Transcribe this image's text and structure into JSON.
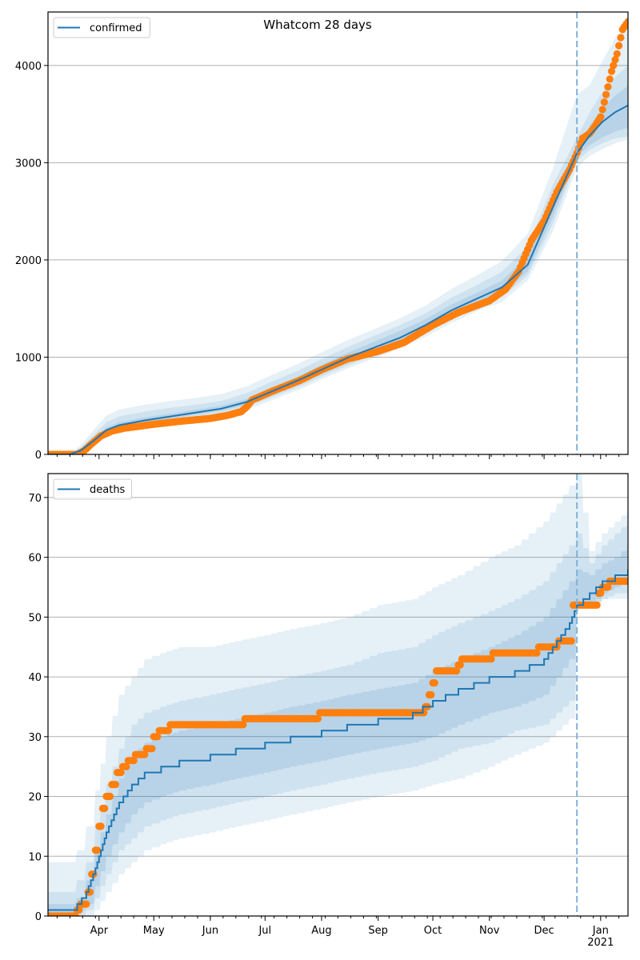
{
  "figure": {
    "title": "Whatcom 28 days"
  },
  "chart_data": [
    {
      "type": "line",
      "panel": "top",
      "title": "Whatcom 28 days",
      "legend": {
        "label": "confirmed",
        "placement": "upper-left"
      },
      "xlabel": "",
      "ylabel": "",
      "x_range": [
        "2020-03-04",
        "2021-01-16"
      ],
      "ylim": [
        0,
        4550
      ],
      "yticks": [
        0,
        1000,
        2000,
        3000,
        4000
      ],
      "grid": "y",
      "forecast_start": "2020-12-19",
      "colors": {
        "forecast": "#1f77b4",
        "observed": "#ff7f0e",
        "band": "#1f77b4",
        "cutoff": "#7fb2d9"
      },
      "forecast": {
        "dates": [
          "2020-03-04",
          "2020-03-16",
          "2020-03-22",
          "2020-03-29",
          "2020-04-05",
          "2020-04-12",
          "2020-04-26",
          "2020-05-10",
          "2020-05-24",
          "2020-06-07",
          "2020-06-21",
          "2020-07-05",
          "2020-07-19",
          "2020-08-02",
          "2020-08-16",
          "2020-08-30",
          "2020-09-13",
          "2020-09-27",
          "2020-10-11",
          "2020-10-25",
          "2020-11-08",
          "2020-11-22",
          "2020-12-06",
          "2020-12-19",
          "2020-12-26",
          "2021-01-02",
          "2021-01-09",
          "2021-01-16"
        ],
        "median": [
          0,
          0,
          40,
          140,
          250,
          300,
          350,
          390,
          430,
          470,
          540,
          650,
          760,
          880,
          1000,
          1100,
          1200,
          1330,
          1480,
          1600,
          1720,
          1950,
          2550,
          3100,
          3280,
          3420,
          3520,
          3590
        ],
        "band_50": [
          [
            0,
            0
          ],
          [
            0,
            0
          ],
          [
            30,
            55
          ],
          [
            120,
            165
          ],
          [
            230,
            280
          ],
          [
            280,
            330
          ],
          [
            330,
            380
          ],
          [
            370,
            420
          ],
          [
            410,
            460
          ],
          [
            450,
            500
          ],
          [
            510,
            570
          ],
          [
            610,
            690
          ],
          [
            720,
            800
          ],
          [
            840,
            930
          ],
          [
            950,
            1050
          ],
          [
            1050,
            1160
          ],
          [
            1150,
            1270
          ],
          [
            1280,
            1390
          ],
          [
            1430,
            1540
          ],
          [
            1550,
            1660
          ],
          [
            1660,
            1790
          ],
          [
            1880,
            2040
          ],
          [
            2450,
            2650
          ],
          [
            3060,
            3160
          ],
          [
            3180,
            3380
          ],
          [
            3260,
            3560
          ],
          [
            3320,
            3690
          ],
          [
            3360,
            3790
          ]
        ],
        "band_80": [
          [
            0,
            0
          ],
          [
            0,
            0
          ],
          [
            20,
            70
          ],
          [
            100,
            200
          ],
          [
            210,
            330
          ],
          [
            260,
            390
          ],
          [
            310,
            440
          ],
          [
            350,
            480
          ],
          [
            390,
            510
          ],
          [
            430,
            550
          ],
          [
            490,
            630
          ],
          [
            590,
            750
          ],
          [
            690,
            860
          ],
          [
            810,
            990
          ],
          [
            920,
            1110
          ],
          [
            1020,
            1220
          ],
          [
            1120,
            1330
          ],
          [
            1240,
            1450
          ],
          [
            1390,
            1610
          ],
          [
            1510,
            1740
          ],
          [
            1620,
            1880
          ],
          [
            1840,
            2140
          ],
          [
            2380,
            2780
          ],
          [
            3020,
            3260
          ],
          [
            3130,
            3520
          ],
          [
            3200,
            3730
          ],
          [
            3250,
            3880
          ],
          [
            3270,
            4000
          ]
        ],
        "band_95": [
          [
            0,
            0
          ],
          [
            0,
            5
          ],
          [
            10,
            95
          ],
          [
            80,
            250
          ],
          [
            180,
            400
          ],
          [
            230,
            460
          ],
          [
            280,
            510
          ],
          [
            320,
            550
          ],
          [
            360,
            580
          ],
          [
            400,
            620
          ],
          [
            460,
            700
          ],
          [
            560,
            820
          ],
          [
            660,
            930
          ],
          [
            780,
            1060
          ],
          [
            890,
            1180
          ],
          [
            990,
            1290
          ],
          [
            1090,
            1400
          ],
          [
            1210,
            1530
          ],
          [
            1350,
            1700
          ],
          [
            1470,
            1840
          ],
          [
            1570,
            1990
          ],
          [
            1790,
            2270
          ],
          [
            2300,
            2950
          ],
          [
            2950,
            3700
          ],
          [
            3070,
            3800
          ],
          [
            3140,
            4050
          ],
          [
            3200,
            4280
          ],
          [
            3240,
            4420
          ]
        ]
      },
      "observed": {
        "dates": [
          "2020-03-04",
          "2020-03-20",
          "2020-03-24",
          "2020-03-28",
          "2020-04-02",
          "2020-04-08",
          "2020-04-15",
          "2020-05-01",
          "2020-05-15",
          "2020-06-01",
          "2020-06-10",
          "2020-06-18",
          "2020-06-21",
          "2020-06-24",
          "2020-07-05",
          "2020-07-20",
          "2020-08-01",
          "2020-08-15",
          "2020-09-01",
          "2020-09-15",
          "2020-10-01",
          "2020-10-15",
          "2020-11-01",
          "2020-11-10",
          "2020-11-17",
          "2020-11-24",
          "2020-12-01",
          "2020-12-08",
          "2020-12-15",
          "2020-12-19",
          "2020-12-22",
          "2020-12-26",
          "2020-12-29",
          "2021-01-01",
          "2021-01-04",
          "2021-01-07",
          "2021-01-10",
          "2021-01-13",
          "2021-01-16"
        ],
        "values": [
          0,
          0,
          40,
          110,
          190,
          240,
          270,
          310,
          340,
          370,
          400,
          440,
          490,
          560,
          650,
          760,
          870,
          980,
          1060,
          1150,
          1330,
          1460,
          1580,
          1700,
          1880,
          2200,
          2400,
          2700,
          2930,
          3100,
          3250,
          3300,
          3380,
          3470,
          3700,
          3940,
          4120,
          4370,
          4450
        ]
      }
    },
    {
      "type": "line",
      "panel": "bottom",
      "title": "",
      "legend": {
        "label": "deaths",
        "placement": "upper-left"
      },
      "xlabel": "",
      "ylabel": "",
      "x_range": [
        "2020-03-04",
        "2021-01-16"
      ],
      "xticks": [
        "Apr",
        "May",
        "Jun",
        "Jul",
        "Aug",
        "Sep",
        "Oct",
        "Nov",
        "Dec",
        "Jan\n2021"
      ],
      "ylim": [
        0,
        74
      ],
      "yticks": [
        0,
        10,
        20,
        30,
        40,
        50,
        60,
        70
      ],
      "grid": "y",
      "forecast_start": "2020-12-19",
      "colors": {
        "forecast": "#1f77b4",
        "observed": "#ff7f0e",
        "band": "#1f77b4",
        "cutoff": "#7fb2d9"
      },
      "forecast": {
        "dates": [
          "2020-03-04",
          "2020-03-15",
          "2020-03-20",
          "2020-03-25",
          "2020-03-30",
          "2020-04-05",
          "2020-04-12",
          "2020-04-19",
          "2020-04-26",
          "2020-05-05",
          "2020-05-15",
          "2020-06-01",
          "2020-06-15",
          "2020-07-01",
          "2020-07-15",
          "2020-08-01",
          "2020-08-15",
          "2020-09-01",
          "2020-09-20",
          "2020-10-01",
          "2020-10-15",
          "2020-11-01",
          "2020-11-15",
          "2020-12-01",
          "2020-12-08",
          "2020-12-15",
          "2020-12-19",
          "2020-12-26",
          "2021-01-02",
          "2021-01-09",
          "2021-01-16"
        ],
        "median": [
          1,
          1,
          2,
          4,
          8,
          14,
          19,
          22,
          24,
          25,
          26,
          27,
          28,
          29,
          30,
          31,
          32,
          33,
          34,
          36,
          38,
          40,
          41,
          43,
          46,
          49,
          52,
          54,
          56,
          57,
          58
        ],
        "band_50": [
          [
            0,
            2
          ],
          [
            0,
            2
          ],
          [
            1,
            3
          ],
          [
            2,
            6
          ],
          [
            5,
            11
          ],
          [
            10,
            17
          ],
          [
            14,
            23
          ],
          [
            17,
            27
          ],
          [
            19,
            29
          ],
          [
            20,
            30
          ],
          [
            21,
            31
          ],
          [
            22,
            32
          ],
          [
            23,
            33
          ],
          [
            24,
            34
          ],
          [
            25,
            35
          ],
          [
            26,
            36
          ],
          [
            27,
            37
          ],
          [
            28,
            38
          ],
          [
            29,
            39
          ],
          [
            30,
            41
          ],
          [
            32,
            43
          ],
          [
            34,
            45
          ],
          [
            35,
            47
          ],
          [
            37,
            50
          ],
          [
            40,
            53
          ],
          [
            43,
            56
          ],
          [
            52,
            58
          ],
          [
            52,
            57
          ],
          [
            54,
            59
          ],
          [
            55,
            60
          ],
          [
            56,
            62
          ]
        ],
        "band_80": [
          [
            0,
            4
          ],
          [
            0,
            4
          ],
          [
            0,
            6
          ],
          [
            1,
            9
          ],
          [
            3,
            15
          ],
          [
            7,
            22
          ],
          [
            11,
            28
          ],
          [
            13,
            32
          ],
          [
            15,
            34
          ],
          [
            16,
            35
          ],
          [
            17,
            36
          ],
          [
            18,
            37
          ],
          [
            19,
            38
          ],
          [
            20,
            39
          ],
          [
            21,
            40
          ],
          [
            22,
            41
          ],
          [
            23,
            42
          ],
          [
            24,
            44
          ],
          [
            25,
            45
          ],
          [
            26,
            47
          ],
          [
            28,
            49
          ],
          [
            29,
            51
          ],
          [
            31,
            53
          ],
          [
            32,
            56
          ],
          [
            34,
            59
          ],
          [
            36,
            62
          ],
          [
            52,
            64
          ],
          [
            52,
            59
          ],
          [
            53,
            62
          ],
          [
            54,
            64
          ],
          [
            54,
            66
          ]
        ],
        "band_95": [
          [
            0,
            9
          ],
          [
            0,
            9
          ],
          [
            0,
            11
          ],
          [
            0,
            15
          ],
          [
            1,
            21
          ],
          [
            4,
            30
          ],
          [
            7,
            37
          ],
          [
            9,
            40
          ],
          [
            11,
            43
          ],
          [
            12,
            44
          ],
          [
            13,
            45
          ],
          [
            14,
            45
          ],
          [
            15,
            46
          ],
          [
            16,
            47
          ],
          [
            17,
            48
          ],
          [
            18,
            49
          ],
          [
            19,
            50
          ],
          [
            20,
            52
          ],
          [
            21,
            53
          ],
          [
            22,
            55
          ],
          [
            23,
            57
          ],
          [
            25,
            60
          ],
          [
            27,
            62
          ],
          [
            29,
            66
          ],
          [
            31,
            69
          ],
          [
            33,
            72
          ],
          [
            52,
            74
          ],
          [
            52,
            61
          ],
          [
            53,
            64
          ],
          [
            53,
            66
          ],
          [
            53,
            68
          ]
        ]
      },
      "observed": {
        "dates": [
          "2020-03-04",
          "2020-03-19",
          "2020-03-20",
          "2020-03-22",
          "2020-03-26",
          "2020-03-28",
          "2020-03-30",
          "2020-04-01",
          "2020-04-03",
          "2020-04-05",
          "2020-04-08",
          "2020-04-11",
          "2020-04-14",
          "2020-04-17",
          "2020-04-21",
          "2020-04-27",
          "2020-05-01",
          "2020-05-04",
          "2020-05-10",
          "2020-06-19",
          "2020-06-20",
          "2020-07-30",
          "2020-07-31",
          "2020-09-26",
          "2020-09-27",
          "2020-09-29",
          "2020-10-01",
          "2020-10-03",
          "2020-10-15",
          "2020-10-17",
          "2020-11-02",
          "2020-11-03",
          "2020-11-27",
          "2020-11-28",
          "2020-12-08",
          "2020-12-09",
          "2020-12-16",
          "2020-12-17",
          "2020-12-30",
          "2020-12-31",
          "2021-01-02",
          "2021-01-05",
          "2021-01-06",
          "2021-01-16"
        ],
        "values": [
          0,
          0,
          1,
          2,
          4,
          7,
          11,
          15,
          18,
          20,
          22,
          24,
          25,
          26,
          27,
          28,
          30,
          31,
          32,
          32,
          33,
          33,
          34,
          34,
          35,
          37,
          39,
          41,
          42,
          43,
          43,
          44,
          44,
          45,
          45,
          46,
          46,
          52,
          52,
          54,
          55,
          55,
          56,
          56
        ]
      }
    }
  ]
}
